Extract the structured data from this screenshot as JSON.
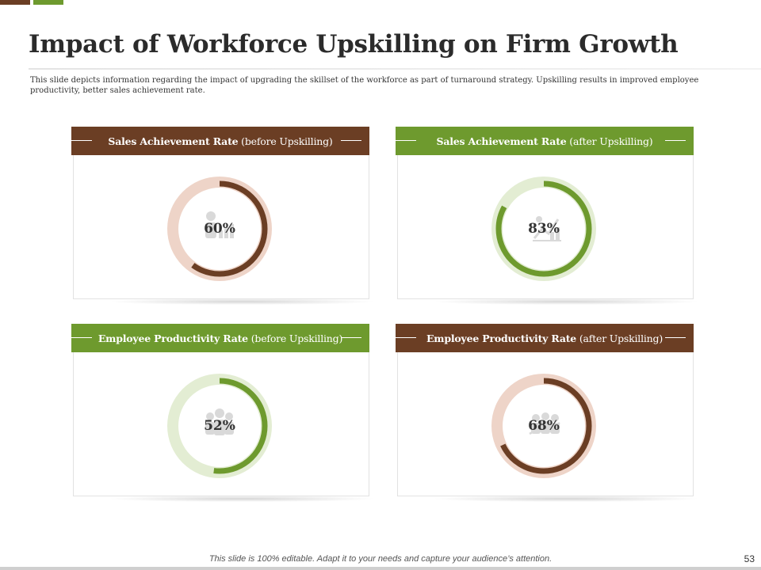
{
  "slide": {
    "title": "Impact of Workforce Upskilling on Firm Growth",
    "description": "This slide depicts information regarding the impact of upgrading the skillset of the workforce  as part of turnaround strategy. Upskilling results in improved employee productivity, better sales achievement rate.",
    "footer_note": "This slide is 100% editable. Adapt it to your needs and capture your audience’s attention.",
    "page_number": "53"
  },
  "colors": {
    "brown": "#6b3e24",
    "brown_light": "#eed4c8",
    "green": "#6e9a2e",
    "green_light": "#e3edd3"
  },
  "cards": [
    {
      "header_bold": "Sales Achievement Rate",
      "header_rest": " (before Upskilling)",
      "value_label": "60%",
      "value": 60,
      "theme": "brown",
      "icon": "person-bar-chart-icon"
    },
    {
      "header_bold": "Sales Achievement Rate",
      "header_rest": " (after Upskilling)",
      "value_label": "83%",
      "value": 83,
      "theme": "green",
      "icon": "growth-chart-icon"
    },
    {
      "header_bold": "Employee Productivity Rate",
      "header_rest": " (before Upskilling)",
      "value_label": "52%",
      "value": 52,
      "theme": "green",
      "icon": "team-people-icon"
    },
    {
      "header_bold": "Employee Productivity Rate",
      "header_rest": " (after Upskilling)",
      "value_label": "68%",
      "value": 68,
      "theme": "brown",
      "icon": "team-trend-icon"
    }
  ]
}
